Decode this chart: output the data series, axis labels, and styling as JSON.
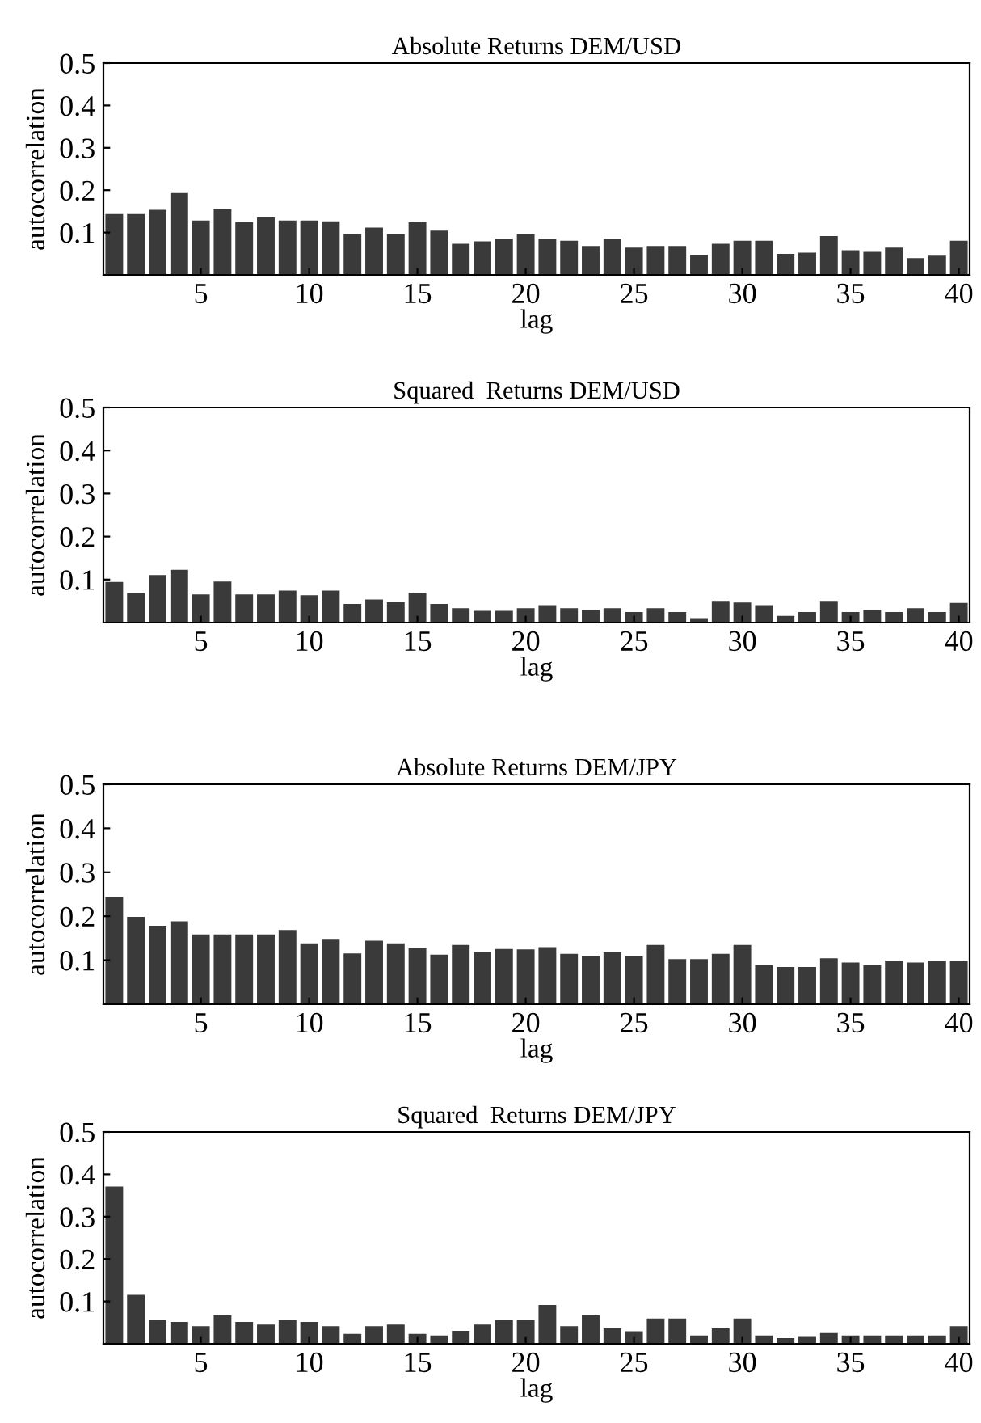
{
  "chart_data": [
    {
      "type": "bar",
      "title": "Absolute Returns DEM/USD",
      "xlabel": "lag",
      "ylabel": "autocorrelation",
      "x": [
        1,
        2,
        3,
        4,
        5,
        6,
        7,
        8,
        9,
        10,
        11,
        12,
        13,
        14,
        15,
        16,
        17,
        18,
        19,
        20,
        21,
        22,
        23,
        24,
        25,
        26,
        27,
        28,
        29,
        30,
        31,
        32,
        33,
        34,
        35,
        36,
        37,
        38,
        39,
        40
      ],
      "xlim": [
        0.5,
        40.5
      ],
      "xticks": [
        5,
        10,
        15,
        20,
        25,
        30,
        35,
        40
      ],
      "ylim": [
        0,
        0.5
      ],
      "yticks": [
        0.1,
        0.2,
        0.3,
        0.4,
        0.5
      ],
      "series": [
        {
          "color": "#3a3a3a",
          "values": [
            0.145,
            0.145,
            0.155,
            0.195,
            0.13,
            0.157,
            0.126,
            0.137,
            0.13,
            0.13,
            0.128,
            0.098,
            0.113,
            0.098,
            0.126,
            0.106,
            0.075,
            0.081,
            0.087,
            0.097,
            0.087,
            0.082,
            0.07,
            0.087,
            0.066,
            0.07,
            0.07,
            0.049,
            0.075,
            0.082,
            0.082,
            0.051,
            0.054,
            0.093,
            0.06,
            0.056,
            0.066,
            0.041,
            0.047,
            0.082
          ]
        }
      ]
    },
    {
      "type": "bar",
      "title": "Squared  Returns DEM/USD",
      "xlabel": "lag",
      "ylabel": "autocorrelation",
      "x": [
        1,
        2,
        3,
        4,
        5,
        6,
        7,
        8,
        9,
        10,
        11,
        12,
        13,
        14,
        15,
        16,
        17,
        18,
        19,
        20,
        21,
        22,
        23,
        24,
        25,
        26,
        27,
        28,
        29,
        30,
        31,
        32,
        33,
        34,
        35,
        36,
        37,
        38,
        39,
        40
      ],
      "xlim": [
        0.5,
        40.5
      ],
      "xticks": [
        5,
        10,
        15,
        20,
        25,
        30,
        35,
        40
      ],
      "ylim": [
        0,
        0.5
      ],
      "yticks": [
        0.1,
        0.2,
        0.3,
        0.4,
        0.5
      ],
      "series": [
        {
          "color": "#3a3a3a",
          "values": [
            0.096,
            0.07,
            0.112,
            0.124,
            0.067,
            0.097,
            0.067,
            0.067,
            0.076,
            0.065,
            0.076,
            0.045,
            0.055,
            0.049,
            0.071,
            0.045,
            0.035,
            0.029,
            0.029,
            0.035,
            0.042,
            0.035,
            0.031,
            0.035,
            0.026,
            0.035,
            0.026,
            0.012,
            0.052,
            0.048,
            0.042,
            0.017,
            0.026,
            0.052,
            0.026,
            0.031,
            0.026,
            0.035,
            0.026,
            0.047
          ]
        }
      ]
    },
    {
      "type": "bar",
      "title": "Absolute Returns DEM/JPY",
      "xlabel": "lag",
      "ylabel": "autocorrelation",
      "x": [
        1,
        2,
        3,
        4,
        5,
        6,
        7,
        8,
        9,
        10,
        11,
        12,
        13,
        14,
        15,
        16,
        17,
        18,
        19,
        20,
        21,
        22,
        23,
        24,
        25,
        26,
        27,
        28,
        29,
        30,
        31,
        32,
        33,
        34,
        35,
        36,
        37,
        38,
        39,
        40
      ],
      "xlim": [
        0.5,
        40.5
      ],
      "xticks": [
        5,
        10,
        15,
        20,
        25,
        30,
        35,
        40
      ],
      "ylim": [
        0,
        0.5
      ],
      "yticks": [
        0.1,
        0.2,
        0.3,
        0.4,
        0.5
      ],
      "series": [
        {
          "color": "#3a3a3a",
          "values": [
            0.245,
            0.2,
            0.18,
            0.19,
            0.16,
            0.16,
            0.16,
            0.16,
            0.17,
            0.14,
            0.15,
            0.117,
            0.146,
            0.14,
            0.129,
            0.114,
            0.136,
            0.12,
            0.127,
            0.126,
            0.131,
            0.116,
            0.11,
            0.12,
            0.11,
            0.136,
            0.104,
            0.104,
            0.116,
            0.136,
            0.09,
            0.086,
            0.086,
            0.106,
            0.096,
            0.09,
            0.101,
            0.096,
            0.101,
            0.101
          ]
        }
      ]
    },
    {
      "type": "bar",
      "title": "Squared  Returns DEM/JPY",
      "xlabel": "lag",
      "ylabel": "autocorrelation",
      "x": [
        1,
        2,
        3,
        4,
        5,
        6,
        7,
        8,
        9,
        10,
        11,
        12,
        13,
        14,
        15,
        16,
        17,
        18,
        19,
        20,
        21,
        22,
        23,
        24,
        25,
        26,
        27,
        28,
        29,
        30,
        31,
        32,
        33,
        34,
        35,
        36,
        37,
        38,
        39,
        40
      ],
      "xlim": [
        0.5,
        40.5
      ],
      "xticks": [
        5,
        10,
        15,
        20,
        25,
        30,
        35,
        40
      ],
      "ylim": [
        0,
        0.5
      ],
      "yticks": [
        0.1,
        0.2,
        0.3,
        0.4,
        0.5
      ],
      "series": [
        {
          "color": "#3a3a3a",
          "values": [
            0.373,
            0.117,
            0.058,
            0.053,
            0.043,
            0.069,
            0.053,
            0.047,
            0.058,
            0.053,
            0.043,
            0.025,
            0.043,
            0.047,
            0.025,
            0.021,
            0.032,
            0.047,
            0.058,
            0.058,
            0.093,
            0.043,
            0.069,
            0.038,
            0.031,
            0.061,
            0.061,
            0.021,
            0.038,
            0.061,
            0.021,
            0.015,
            0.018,
            0.027,
            0.021,
            0.021,
            0.021,
            0.021,
            0.021,
            0.043
          ]
        }
      ]
    }
  ]
}
